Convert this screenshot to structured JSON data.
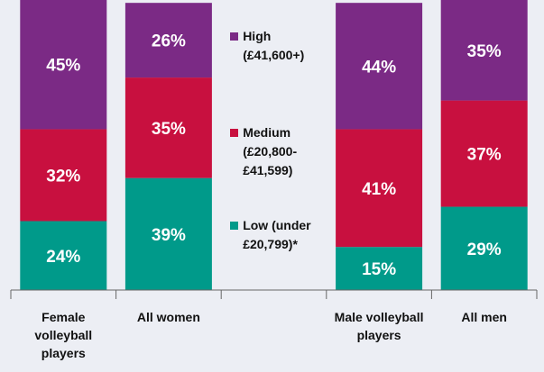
{
  "chart_data": {
    "type": "stacked_bar",
    "categories": [
      "Female volleyball players",
      "All women",
      null,
      "Male volleyball players",
      "All men"
    ],
    "series": [
      {
        "name": "Low (under £20,799)*",
        "color": "#009a8a",
        "values": [
          24,
          39,
          null,
          15,
          29
        ],
        "value_labels": [
          "24%",
          "39%",
          null,
          "15%",
          "29%"
        ]
      },
      {
        "name": "Medium (£20,800-£41,599)",
        "color": "#c8103f",
        "values": [
          32,
          35,
          null,
          41,
          37
        ],
        "value_labels": [
          "32%",
          "35%",
          null,
          "41%",
          "37%"
        ]
      },
      {
        "name": "High (£41,600+)",
        "color": "#7b2a85",
        "values": [
          45,
          26,
          null,
          44,
          35
        ],
        "value_labels": [
          "45%",
          "26%",
          null,
          "44%",
          "35%"
        ]
      }
    ],
    "ylim": [
      0,
      101
    ],
    "legend": "center"
  }
}
